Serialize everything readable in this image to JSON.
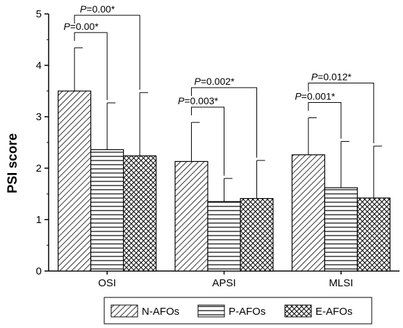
{
  "chart_data": {
    "type": "bar",
    "ylabel": "PSI score",
    "xlabel": "",
    "ylim": [
      0,
      5
    ],
    "yticks": [
      "0",
      "1",
      "2",
      "3",
      "4",
      "5"
    ],
    "categories": [
      "OSI",
      "APSI",
      "MLSI"
    ],
    "series": [
      {
        "name": "N-AFOs",
        "values": [
          3.5,
          2.13,
          2.26
        ],
        "errors": [
          0.84,
          0.76,
          0.72
        ],
        "pattern": "diagonal-hatch"
      },
      {
        "name": "P-AFOs",
        "values": [
          2.36,
          1.35,
          1.62
        ],
        "errors": [
          0.91,
          0.45,
          0.9
        ],
        "pattern": "horizontal-lines"
      },
      {
        "name": "E-AFOs",
        "values": [
          2.24,
          1.41,
          1.42
        ],
        "errors": [
          1.23,
          0.74,
          1.01
        ],
        "pattern": "crosshatch"
      }
    ],
    "annotations": [
      {
        "category": "OSI",
        "from": "N-AFOs",
        "to": "P-AFOs",
        "p": "0.00*"
      },
      {
        "category": "OSI",
        "from": "N-AFOs",
        "to": "E-AFOs",
        "p": "0.00*"
      },
      {
        "category": "APSI",
        "from": "N-AFOs",
        "to": "P-AFOs",
        "p": "0.003*"
      },
      {
        "category": "APSI",
        "from": "N-AFOs",
        "to": "E-AFOs",
        "p": "0.002*"
      },
      {
        "category": "MLSI",
        "from": "N-AFOs",
        "to": "P-AFOs",
        "p": "0.001*"
      },
      {
        "category": "MLSI",
        "from": "N-AFOs",
        "to": "E-AFOs",
        "p": "0.012*"
      }
    ],
    "p_prefix": "P",
    "legend_position": "bottom",
    "grid": false,
    "colors": {
      "bar_fill": "#ffffff",
      "pattern": "#000000"
    }
  }
}
